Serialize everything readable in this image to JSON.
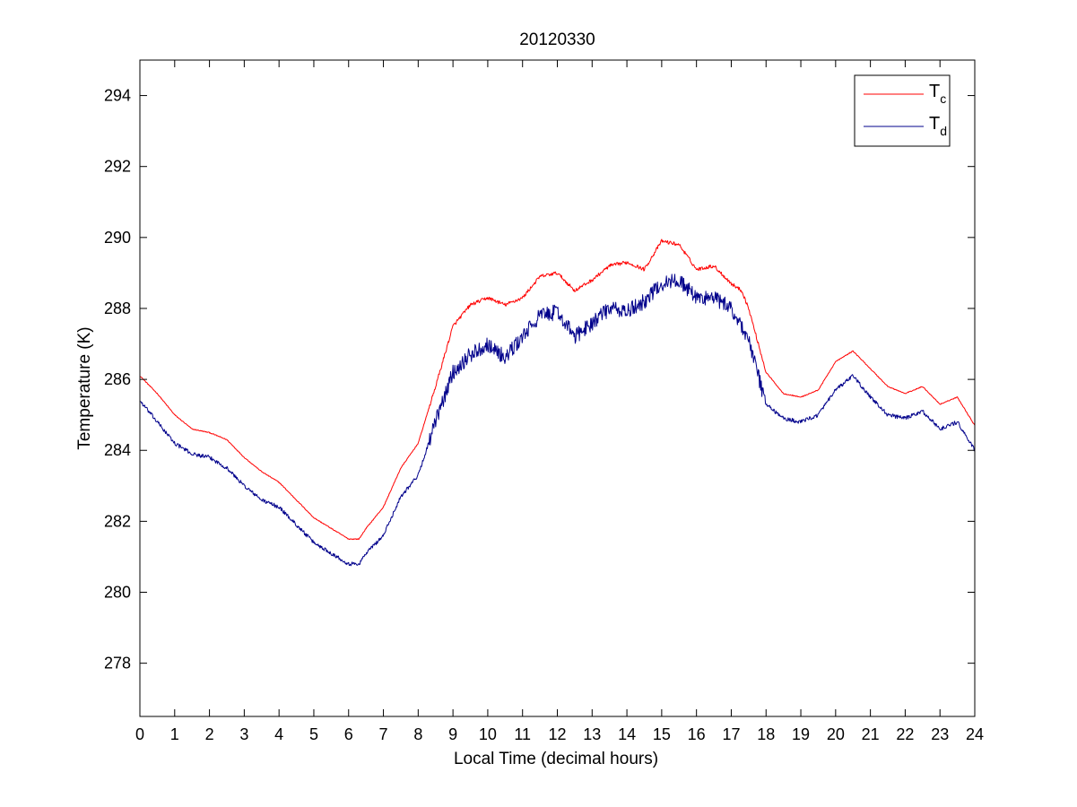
{
  "chart_data": {
    "type": "line",
    "title": "20120330",
    "xlabel": "Local Time (decimal hours)",
    "ylabel": "Temperature (K)",
    "xlim": [
      0,
      24
    ],
    "ylim": [
      276.5,
      295
    ],
    "xticks": [
      0,
      1,
      2,
      3,
      4,
      5,
      6,
      7,
      8,
      9,
      10,
      11,
      12,
      13,
      14,
      15,
      16,
      17,
      18,
      19,
      20,
      21,
      22,
      23,
      24
    ],
    "yticks": [
      278,
      280,
      282,
      284,
      286,
      288,
      290,
      292,
      294
    ],
    "xtick_labels": [
      "0",
      "1",
      "2",
      "3",
      "4",
      "5",
      "6",
      "7",
      "8",
      "9",
      "10",
      "11",
      "12",
      "13",
      "14",
      "15",
      "16",
      "17",
      "18",
      "19",
      "20",
      "21",
      "22",
      "23",
      "24"
    ],
    "ytick_labels": [
      "278",
      "280",
      "282",
      "284",
      "286",
      "288",
      "290",
      "292",
      "294"
    ],
    "grid": false,
    "legend_position": "top-right",
    "series": [
      {
        "name": "T",
        "subscript": "c",
        "color": "#ff0000",
        "noise": 0.05,
        "x": [
          0,
          0.5,
          1,
          1.5,
          2,
          2.5,
          3,
          3.5,
          4,
          4.5,
          5,
          5.5,
          6,
          6.3,
          6.5,
          7,
          7.5,
          8,
          8.5,
          9,
          9.5,
          10,
          10.5,
          11,
          11.5,
          12,
          12.5,
          13,
          13.5,
          14,
          14.5,
          15,
          15.5,
          16,
          16.5,
          17,
          17.3,
          17.5,
          18,
          18.5,
          19,
          19.5,
          20,
          20.5,
          21,
          21.5,
          22,
          22.5,
          23,
          23.5,
          24
        ],
        "y": [
          286.1,
          285.6,
          285.0,
          284.6,
          284.5,
          284.3,
          283.8,
          283.4,
          283.1,
          282.6,
          282.1,
          281.8,
          281.5,
          281.5,
          281.8,
          282.4,
          283.5,
          284.2,
          285.8,
          287.5,
          288.1,
          288.3,
          288.1,
          288.3,
          288.9,
          289.0,
          288.5,
          288.8,
          289.2,
          289.3,
          289.1,
          289.9,
          289.8,
          289.1,
          289.2,
          288.7,
          288.5,
          288.0,
          286.2,
          285.6,
          285.5,
          285.7,
          286.5,
          286.8,
          286.3,
          285.8,
          285.6,
          285.8,
          285.3,
          285.5,
          284.7
        ]
      },
      {
        "name": "T",
        "subscript": "d",
        "color": "#00008b",
        "noise": 0.22,
        "x": [
          0,
          0.5,
          1,
          1.5,
          2,
          2.5,
          3,
          3.5,
          4,
          4.5,
          5,
          5.5,
          6,
          6.3,
          6.5,
          7,
          7.5,
          8,
          8.5,
          9,
          9.5,
          10,
          10.5,
          11,
          11.5,
          12,
          12.5,
          13,
          13.5,
          14,
          14.5,
          15,
          15.5,
          16,
          16.5,
          17,
          17.3,
          17.5,
          18,
          18.5,
          19,
          19.5,
          20,
          20.5,
          21,
          21.5,
          22,
          22.5,
          23,
          23.5,
          24
        ],
        "y": [
          285.4,
          284.8,
          284.2,
          283.9,
          283.8,
          283.5,
          283.0,
          282.6,
          282.4,
          281.9,
          281.4,
          281.1,
          280.8,
          280.8,
          281.1,
          281.6,
          282.7,
          283.3,
          284.8,
          286.2,
          286.7,
          287.0,
          286.6,
          287.2,
          287.8,
          287.9,
          287.2,
          287.6,
          288.0,
          287.9,
          288.2,
          288.7,
          288.8,
          288.3,
          288.3,
          288.0,
          287.5,
          287.1,
          285.3,
          284.9,
          284.8,
          285.0,
          285.7,
          286.1,
          285.5,
          285.0,
          284.9,
          285.1,
          284.6,
          284.8,
          284.0
        ]
      }
    ]
  }
}
